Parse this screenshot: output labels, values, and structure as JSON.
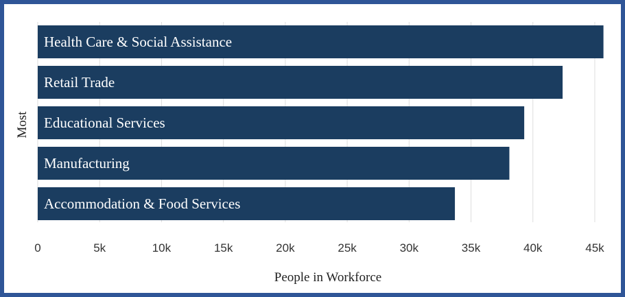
{
  "chart_data": {
    "type": "bar",
    "orientation": "horizontal",
    "categories": [
      "Health Care & Social Assistance",
      "Retail Trade",
      "Educational Services",
      "Manufacturing",
      "Accommodation & Food Services"
    ],
    "values": [
      45700,
      42400,
      39300,
      38100,
      33700
    ],
    "xlabel": "People in Workforce",
    "ylabel": "Most",
    "xlim": [
      0,
      46000
    ],
    "xticks": [
      0,
      5000,
      10000,
      15000,
      20000,
      25000,
      30000,
      35000,
      40000,
      45000
    ],
    "xtick_labels": [
      "0",
      "5k",
      "10k",
      "15k",
      "20k",
      "25k",
      "30k",
      "35k",
      "40k",
      "45k"
    ],
    "grid": "vertical",
    "colors": {
      "bar": "#1b3d60",
      "grid": "#dddddd",
      "frame": "#2f5597"
    }
  }
}
